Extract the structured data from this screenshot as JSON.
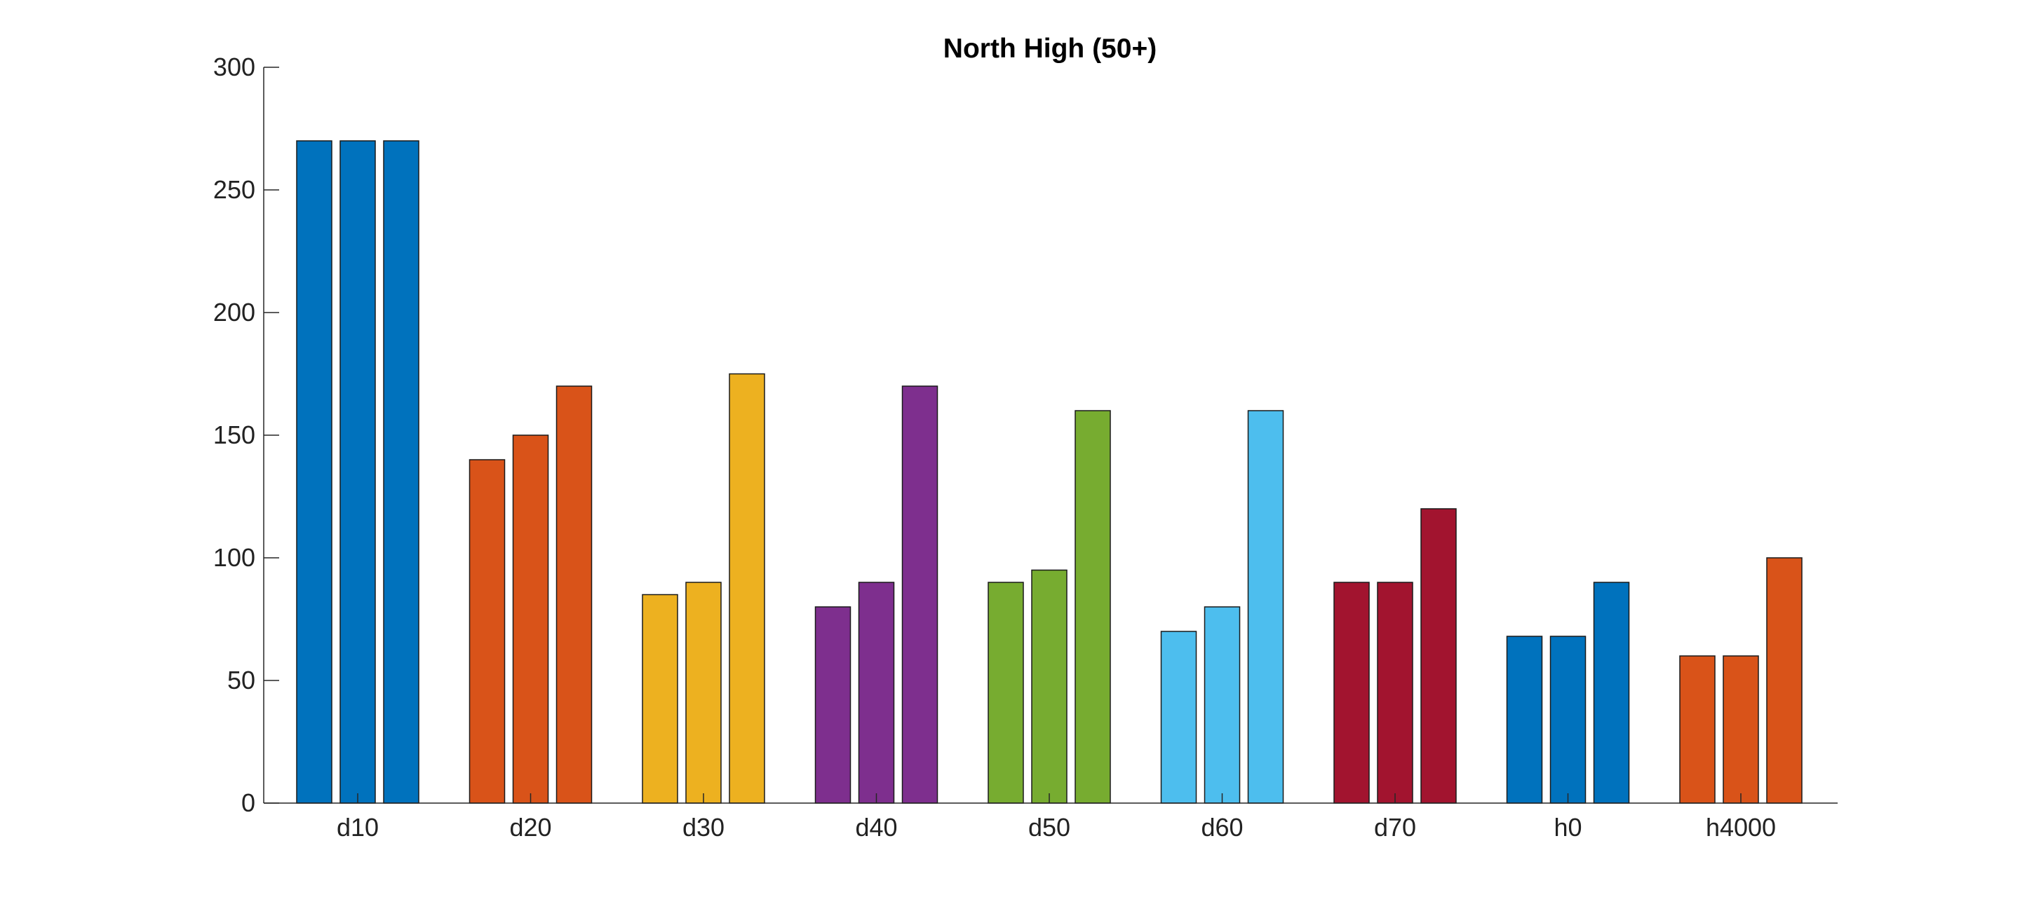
{
  "chart_data": {
    "type": "bar",
    "title": "North High (50+)",
    "xlabel": "",
    "ylabel": "",
    "categories": [
      "d10",
      "d20",
      "d30",
      "d40",
      "d50",
      "d60",
      "d70",
      "h0",
      "h4000"
    ],
    "values": [
      [
        270,
        270,
        270
      ],
      [
        140,
        150,
        170
      ],
      [
        85,
        90,
        175
      ],
      [
        80,
        90,
        170
      ],
      [
        90,
        95,
        160
      ],
      [
        70,
        80,
        160
      ],
      [
        90,
        90,
        120
      ],
      [
        68,
        68,
        90
      ],
      [
        60,
        60,
        100
      ]
    ],
    "category_colors": [
      "#0072BD",
      "#D95319",
      "#EDB120",
      "#7E2F8E",
      "#77AC30",
      "#4DBEEE",
      "#A2142F",
      "#0072BD",
      "#D95319"
    ],
    "ylim": [
      0,
      300
    ],
    "yticks": [
      0,
      50,
      100,
      150,
      200,
      250,
      300
    ],
    "grid": false,
    "legend": "none"
  }
}
